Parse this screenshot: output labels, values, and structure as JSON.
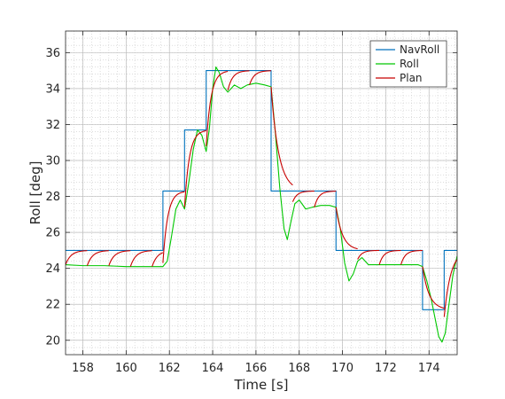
{
  "chart_data": {
    "type": "line",
    "title": "",
    "xlabel": "Time [s]",
    "ylabel": "Roll [deg]",
    "xlim": [
      157.2,
      175.3
    ],
    "ylim": [
      19.2,
      37.2
    ],
    "xticks": [
      "158",
      "160",
      "162",
      "164",
      "166",
      "168",
      "170",
      "172",
      "174"
    ],
    "yticks": [
      "20",
      "22",
      "24",
      "26",
      "28",
      "30",
      "32",
      "34",
      "36"
    ],
    "grid": true,
    "minor_grid": true,
    "legend": "top-right",
    "series": [
      {
        "name": "NavRoll",
        "color": "#0072bd",
        "style": "step",
        "points": [
          [
            157.2,
            25.0
          ],
          [
            161.7,
            25.0
          ],
          [
            161.7,
            28.3
          ],
          [
            162.7,
            28.3
          ],
          [
            162.7,
            31.7
          ],
          [
            163.7,
            31.7
          ],
          [
            163.7,
            35.0
          ],
          [
            166.7,
            35.0
          ],
          [
            166.7,
            28.3
          ],
          [
            169.7,
            28.3
          ],
          [
            169.7,
            25.0
          ],
          [
            173.7,
            25.0
          ],
          [
            173.7,
            21.7
          ],
          [
            174.7,
            21.7
          ],
          [
            174.7,
            25.0
          ],
          [
            175.3,
            25.0
          ]
        ]
      },
      {
        "name": "Roll",
        "color": "#00c800",
        "style": "line",
        "points": [
          [
            157.2,
            24.2
          ],
          [
            158.0,
            24.15
          ],
          [
            159.0,
            24.15
          ],
          [
            160.0,
            24.1
          ],
          [
            161.0,
            24.1
          ],
          [
            161.7,
            24.1
          ],
          [
            161.9,
            24.4
          ],
          [
            162.1,
            25.8
          ],
          [
            162.3,
            27.3
          ],
          [
            162.5,
            27.8
          ],
          [
            162.7,
            27.3
          ],
          [
            162.9,
            28.8
          ],
          [
            163.1,
            30.6
          ],
          [
            163.3,
            31.7
          ],
          [
            163.5,
            31.4
          ],
          [
            163.7,
            30.5
          ],
          [
            163.85,
            31.8
          ],
          [
            164.0,
            34.0
          ],
          [
            164.15,
            35.2
          ],
          [
            164.3,
            34.9
          ],
          [
            164.5,
            34.1
          ],
          [
            164.7,
            33.8
          ],
          [
            165.0,
            34.2
          ],
          [
            165.3,
            34.0
          ],
          [
            165.6,
            34.2
          ],
          [
            166.0,
            34.3
          ],
          [
            166.4,
            34.2
          ],
          [
            166.7,
            34.1
          ],
          [
            166.9,
            31.5
          ],
          [
            167.1,
            28.5
          ],
          [
            167.3,
            26.2
          ],
          [
            167.45,
            25.6
          ],
          [
            167.6,
            26.5
          ],
          [
            167.8,
            27.6
          ],
          [
            168.0,
            27.8
          ],
          [
            168.3,
            27.3
          ],
          [
            168.6,
            27.4
          ],
          [
            169.0,
            27.5
          ],
          [
            169.4,
            27.5
          ],
          [
            169.7,
            27.4
          ],
          [
            169.9,
            26.2
          ],
          [
            170.1,
            24.3
          ],
          [
            170.3,
            23.3
          ],
          [
            170.5,
            23.7
          ],
          [
            170.7,
            24.4
          ],
          [
            170.9,
            24.6
          ],
          [
            171.2,
            24.2
          ],
          [
            171.5,
            24.2
          ],
          [
            172.0,
            24.2
          ],
          [
            172.5,
            24.2
          ],
          [
            173.0,
            24.2
          ],
          [
            173.5,
            24.2
          ],
          [
            173.7,
            24.1
          ],
          [
            173.9,
            23.3
          ],
          [
            174.1,
            22.3
          ],
          [
            174.3,
            21.1
          ],
          [
            174.45,
            20.2
          ],
          [
            174.6,
            19.9
          ],
          [
            174.75,
            20.4
          ],
          [
            174.9,
            21.8
          ],
          [
            175.1,
            23.6
          ],
          [
            175.3,
            24.7
          ]
        ]
      },
      {
        "name": "Plan",
        "color": "#c80000",
        "style": "segments",
        "segments": [
          {
            "t0": 157.2,
            "t1": 158.2,
            "start": 24.2,
            "target": 25.0,
            "tau": 0.25
          },
          {
            "t0": 158.2,
            "t1": 159.2,
            "start": 24.15,
            "target": 25.0,
            "tau": 0.25
          },
          {
            "t0": 159.2,
            "t1": 160.2,
            "start": 24.15,
            "target": 25.0,
            "tau": 0.25
          },
          {
            "t0": 160.2,
            "t1": 161.2,
            "start": 24.1,
            "target": 25.0,
            "tau": 0.25
          },
          {
            "t0": 161.2,
            "t1": 161.7,
            "start": 24.1,
            "target": 25.0,
            "tau": 0.25
          },
          {
            "t0": 161.7,
            "t1": 162.7,
            "start": 24.3,
            "target": 28.3,
            "tau": 0.22
          },
          {
            "t0": 162.7,
            "t1": 163.7,
            "start": 27.4,
            "target": 31.7,
            "tau": 0.22
          },
          {
            "t0": 163.7,
            "t1": 164.7,
            "start": 30.8,
            "target": 35.0,
            "tau": 0.22
          },
          {
            "t0": 164.7,
            "t1": 165.7,
            "start": 33.9,
            "target": 35.0,
            "tau": 0.22
          },
          {
            "t0": 165.7,
            "t1": 166.7,
            "start": 34.2,
            "target": 35.0,
            "tau": 0.22
          },
          {
            "t0": 166.7,
            "t1": 167.7,
            "start": 34.1,
            "target": 28.3,
            "tau": 0.35
          },
          {
            "t0": 167.7,
            "t1": 168.7,
            "start": 27.7,
            "target": 28.3,
            "tau": 0.2
          },
          {
            "t0": 168.7,
            "t1": 169.7,
            "start": 27.4,
            "target": 28.3,
            "tau": 0.2
          },
          {
            "t0": 169.7,
            "t1": 170.7,
            "start": 27.4,
            "target": 25.0,
            "tau": 0.3
          },
          {
            "t0": 170.7,
            "t1": 171.7,
            "start": 24.5,
            "target": 25.0,
            "tau": 0.2
          },
          {
            "t0": 171.7,
            "t1": 172.7,
            "start": 24.2,
            "target": 25.0,
            "tau": 0.2
          },
          {
            "t0": 172.7,
            "t1": 173.7,
            "start": 24.2,
            "target": 25.0,
            "tau": 0.2
          },
          {
            "t0": 173.7,
            "t1": 174.7,
            "start": 24.1,
            "target": 21.7,
            "tau": 0.3
          },
          {
            "t0": 174.7,
            "t1": 175.3,
            "start": 21.3,
            "target": 25.0,
            "tau": 0.3
          }
        ]
      }
    ]
  }
}
